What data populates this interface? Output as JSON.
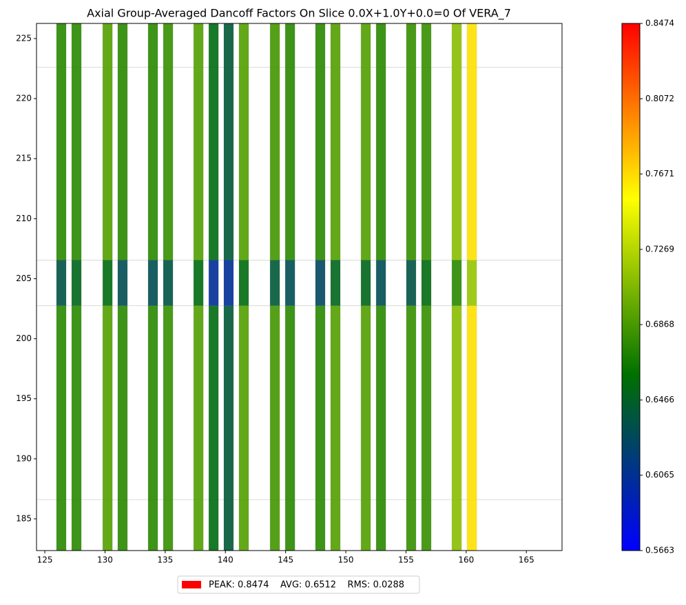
{
  "chart_data": {
    "type": "heatmap",
    "title": "Axial Group-Averaged Dancoff Factors On Slice 0.0X+1.0Y+0.0=0 Of VERA_7",
    "x": [
      126.37,
      127.63,
      130.21,
      131.46,
      133.98,
      135.24,
      137.76,
      139.02,
      140.27,
      141.53,
      144.11,
      145.37,
      147.88,
      149.14,
      151.66,
      152.92,
      155.43,
      156.69,
      159.21,
      160.47
    ],
    "y_edges": [
      182.36,
      202.75,
      206.55,
      226.26
    ],
    "z": [
      [
        0.675,
        0.675,
        0.69,
        0.675,
        0.675,
        0.68,
        0.69,
        0.655,
        0.64,
        0.69,
        0.685,
        0.675,
        0.675,
        0.69,
        0.69,
        0.675,
        0.68,
        0.68,
        0.71,
        0.765
      ],
      [
        0.635,
        0.65,
        0.655,
        0.63,
        0.63,
        0.635,
        0.655,
        0.605,
        0.605,
        0.655,
        0.64,
        0.63,
        0.625,
        0.65,
        0.65,
        0.63,
        0.635,
        0.655,
        0.675,
        0.715
      ],
      [
        0.675,
        0.675,
        0.69,
        0.675,
        0.675,
        0.68,
        0.69,
        0.655,
        0.64,
        0.69,
        0.685,
        0.675,
        0.675,
        0.69,
        0.69,
        0.675,
        0.68,
        0.68,
        0.71,
        0.765
      ]
    ],
    "y_mesh": [
      186.6,
      202.75,
      206.55,
      222.6
    ],
    "xlim": [
      124.31,
      167.96
    ],
    "ylim": [
      182.36,
      226.26
    ],
    "xticks": [
      125,
      130,
      135,
      140,
      145,
      150,
      155,
      160,
      165
    ],
    "yticks": [
      185,
      190,
      195,
      200,
      205,
      210,
      215,
      220,
      225
    ],
    "colormap": [
      "#0000ff",
      "#007000",
      "#ffff00",
      "#ff0000"
    ],
    "clim": [
      0.5663,
      0.8474
    ],
    "cbar_ticks": [
      0.5663,
      0.6065,
      0.6466,
      0.6868,
      0.7269,
      0.7671,
      0.8072,
      0.8474
    ],
    "legend": {
      "text": "PEAK: 0.8474    AVG: 0.6512    RMS: 0.0288",
      "color": "#ff0000"
    }
  }
}
